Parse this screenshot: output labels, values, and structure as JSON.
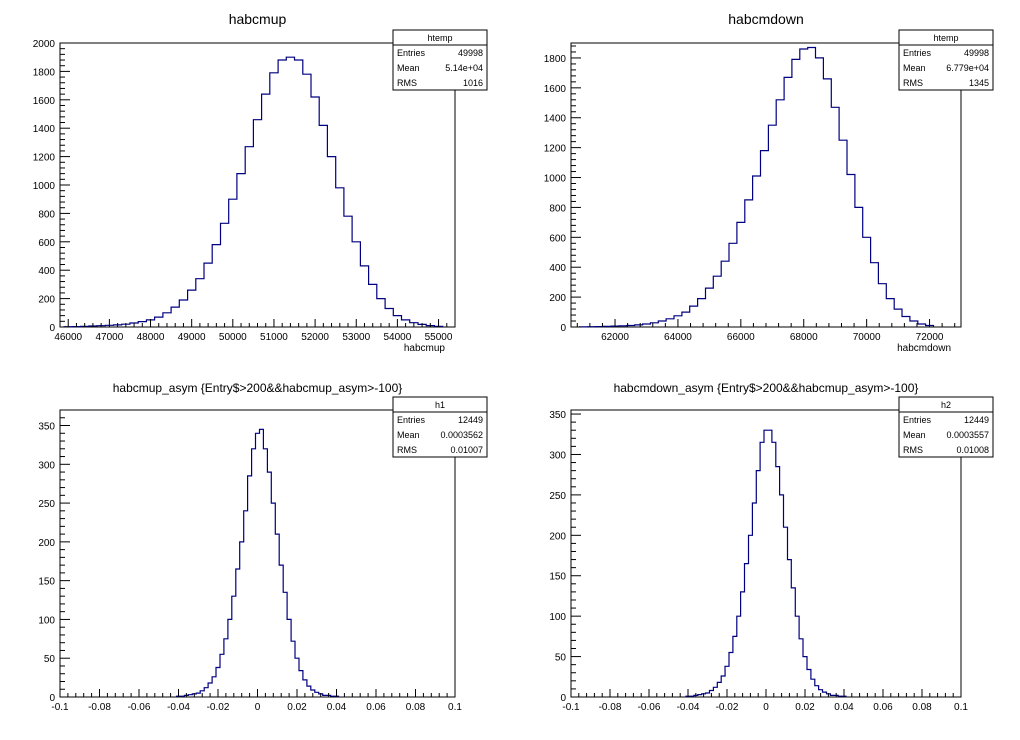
{
  "colors": {
    "line": "#000080",
    "frame": "#000000",
    "background": "#ffffff"
  },
  "chart_data": [
    {
      "type": "histogram",
      "title": "habcmup",
      "xlabel": "habcmup",
      "ylabel": "",
      "xlim": [
        45800,
        55400
      ],
      "ylim": [
        0,
        2000
      ],
      "xticks": [
        46000,
        47000,
        48000,
        49000,
        50000,
        51000,
        52000,
        53000,
        54000,
        55000
      ],
      "xtick_labels": [
        "46000",
        "47000",
        "48000",
        "49000",
        "50000",
        "51000",
        "52000",
        "53000",
        "54000",
        "55000"
      ],
      "yticks": [
        0,
        200,
        400,
        600,
        800,
        1000,
        1200,
        1400,
        1600,
        1800,
        2000
      ],
      "ytick_labels": [
        "0",
        "200",
        "400",
        "600",
        "800",
        "1000",
        "1200",
        "1400",
        "1600",
        "1800",
        "2000"
      ],
      "stats": {
        "name": "htemp",
        "rows": [
          [
            "Entries",
            "49998"
          ],
          [
            "Mean",
            "5.14e+04"
          ],
          [
            "RMS",
            "1016"
          ]
        ]
      },
      "x": [
        46000,
        46200,
        46400,
        46600,
        46800,
        47000,
        47200,
        47400,
        47600,
        47800,
        48000,
        48200,
        48400,
        48600,
        48800,
        49000,
        49200,
        49400,
        49600,
        49800,
        50000,
        50200,
        50400,
        50600,
        50800,
        51000,
        51200,
        51400,
        51600,
        51800,
        52000,
        52200,
        52400,
        52600,
        52800,
        53000,
        53200,
        53400,
        53600,
        53800,
        54000,
        54200,
        54400,
        54600,
        54800,
        55000
      ],
      "values": [
        2,
        3,
        5,
        7,
        9,
        12,
        15,
        20,
        28,
        38,
        50,
        70,
        100,
        140,
        190,
        260,
        340,
        450,
        580,
        730,
        900,
        1080,
        1270,
        1460,
        1640,
        1790,
        1880,
        1900,
        1880,
        1780,
        1620,
        1420,
        1200,
        980,
        780,
        600,
        430,
        300,
        200,
        130,
        80,
        50,
        30,
        18,
        10,
        5
      ],
      "grid": false,
      "legend": "none"
    },
    {
      "type": "histogram",
      "title": "habcmdown",
      "xlabel": "habcmdown",
      "ylabel": "",
      "xlim": [
        60600,
        73000
      ],
      "ylim": [
        0,
        1900
      ],
      "xticks": [
        62000,
        64000,
        66000,
        68000,
        70000,
        72000
      ],
      "xtick_labels": [
        "62000",
        "64000",
        "66000",
        "68000",
        "70000",
        "72000"
      ],
      "yticks": [
        0,
        200,
        400,
        600,
        800,
        1000,
        1200,
        1400,
        1600,
        1800
      ],
      "ytick_labels": [
        "0",
        "200",
        "400",
        "600",
        "800",
        "1000",
        "1200",
        "1400",
        "1600",
        "1800"
      ],
      "stats": {
        "name": "htemp",
        "rows": [
          [
            "Entries",
            "49998"
          ],
          [
            "Mean",
            "6.779e+04"
          ],
          [
            "RMS",
            "1345"
          ]
        ]
      },
      "x": [
        61000,
        61250,
        61500,
        61750,
        62000,
        62250,
        62500,
        62750,
        63000,
        63250,
        63500,
        63750,
        64000,
        64250,
        64500,
        64750,
        65000,
        65250,
        65500,
        65750,
        66000,
        66250,
        66500,
        66750,
        67000,
        67250,
        67500,
        67750,
        68000,
        68250,
        68500,
        68750,
        69000,
        69250,
        69500,
        69750,
        70000,
        70250,
        70500,
        70750,
        71000,
        71250,
        71500,
        71750,
        72000
      ],
      "values": [
        1,
        2,
        3,
        4,
        6,
        8,
        10,
        14,
        20,
        28,
        40,
        55,
        75,
        100,
        140,
        190,
        260,
        340,
        440,
        560,
        700,
        850,
        1010,
        1180,
        1350,
        1520,
        1670,
        1790,
        1860,
        1870,
        1800,
        1660,
        1470,
        1250,
        1020,
        800,
        600,
        430,
        290,
        190,
        120,
        70,
        40,
        20,
        10
      ],
      "grid": false,
      "legend": "none"
    },
    {
      "type": "histogram",
      "title": "habcmup_asym {Entry$>200&&habcmup_asym>-100}",
      "xlabel": "",
      "ylabel": "",
      "xlim": [
        -0.1,
        0.1
      ],
      "ylim": [
        0,
        370
      ],
      "xticks": [
        -0.1,
        -0.08,
        -0.06,
        -0.04,
        -0.02,
        0,
        0.02,
        0.04,
        0.06,
        0.08,
        0.1
      ],
      "xtick_labels": [
        "-0.1",
        "-0.08",
        "-0.06",
        "-0.04",
        "-0.02",
        "0",
        "0.02",
        "0.04",
        "0.06",
        "0.08",
        "0.1"
      ],
      "yticks": [
        0,
        50,
        100,
        150,
        200,
        250,
        300,
        350
      ],
      "ytick_labels": [
        "0",
        "50",
        "100",
        "150",
        "200",
        "250",
        "300",
        "350"
      ],
      "stats": {
        "name": "h1",
        "rows": [
          [
            "Entries",
            "12449"
          ],
          [
            "Mean",
            "0.0003562"
          ],
          [
            "RMS",
            "0.01007"
          ]
        ]
      },
      "x": [
        -0.04,
        -0.038,
        -0.036,
        -0.034,
        -0.032,
        -0.03,
        -0.028,
        -0.026,
        -0.024,
        -0.022,
        -0.02,
        -0.018,
        -0.016,
        -0.014,
        -0.012,
        -0.01,
        -0.008,
        -0.006,
        -0.004,
        -0.002,
        0,
        0.002,
        0.004,
        0.006,
        0.008,
        0.01,
        0.012,
        0.014,
        0.016,
        0.018,
        0.02,
        0.022,
        0.024,
        0.026,
        0.028,
        0.03,
        0.032,
        0.034,
        0.036,
        0.038,
        0.04
      ],
      "values": [
        1,
        1,
        2,
        3,
        4,
        5,
        8,
        12,
        18,
        26,
        38,
        55,
        75,
        100,
        130,
        165,
        200,
        240,
        285,
        320,
        340,
        345,
        320,
        290,
        250,
        210,
        170,
        135,
        100,
        72,
        50,
        34,
        22,
        14,
        9,
        6,
        4,
        2,
        2,
        1,
        1
      ],
      "grid": false,
      "legend": "none"
    },
    {
      "type": "histogram",
      "title": "habcmdown_asym {Entry$>200&&habcmup_asym>-100}",
      "xlabel": "",
      "ylabel": "",
      "xlim": [
        -0.1,
        0.1
      ],
      "ylim": [
        0,
        355
      ],
      "xticks": [
        -0.1,
        -0.08,
        -0.06,
        -0.04,
        -0.02,
        0,
        0.02,
        0.04,
        0.06,
        0.08,
        0.1
      ],
      "xtick_labels": [
        "-0.1",
        "-0.08",
        "-0.06",
        "-0.04",
        "-0.02",
        "0",
        "0.02",
        "0.04",
        "0.06",
        "0.08",
        "0.1"
      ],
      "yticks": [
        0,
        50,
        100,
        150,
        200,
        250,
        300,
        350
      ],
      "ytick_labels": [
        "0",
        "50",
        "100",
        "150",
        "200",
        "250",
        "300",
        "350"
      ],
      "stats": {
        "name": "h2",
        "rows": [
          [
            "Entries",
            "12449"
          ],
          [
            "Mean",
            "0.0003557"
          ],
          [
            "RMS",
            "0.01008"
          ]
        ]
      },
      "x": [
        -0.04,
        -0.038,
        -0.036,
        -0.034,
        -0.032,
        -0.03,
        -0.028,
        -0.026,
        -0.024,
        -0.022,
        -0.02,
        -0.018,
        -0.016,
        -0.014,
        -0.012,
        -0.01,
        -0.008,
        -0.006,
        -0.004,
        -0.002,
        0,
        0.002,
        0.004,
        0.006,
        0.008,
        0.01,
        0.012,
        0.014,
        0.016,
        0.018,
        0.02,
        0.022,
        0.024,
        0.026,
        0.028,
        0.03,
        0.032,
        0.034,
        0.036,
        0.038,
        0.04
      ],
      "values": [
        1,
        1,
        2,
        3,
        4,
        5,
        8,
        12,
        18,
        26,
        38,
        55,
        75,
        100,
        130,
        165,
        200,
        240,
        280,
        315,
        330,
        330,
        315,
        285,
        250,
        210,
        170,
        135,
        100,
        72,
        50,
        34,
        22,
        14,
        9,
        6,
        4,
        2,
        2,
        1,
        1
      ],
      "grid": false,
      "legend": "none"
    }
  ]
}
